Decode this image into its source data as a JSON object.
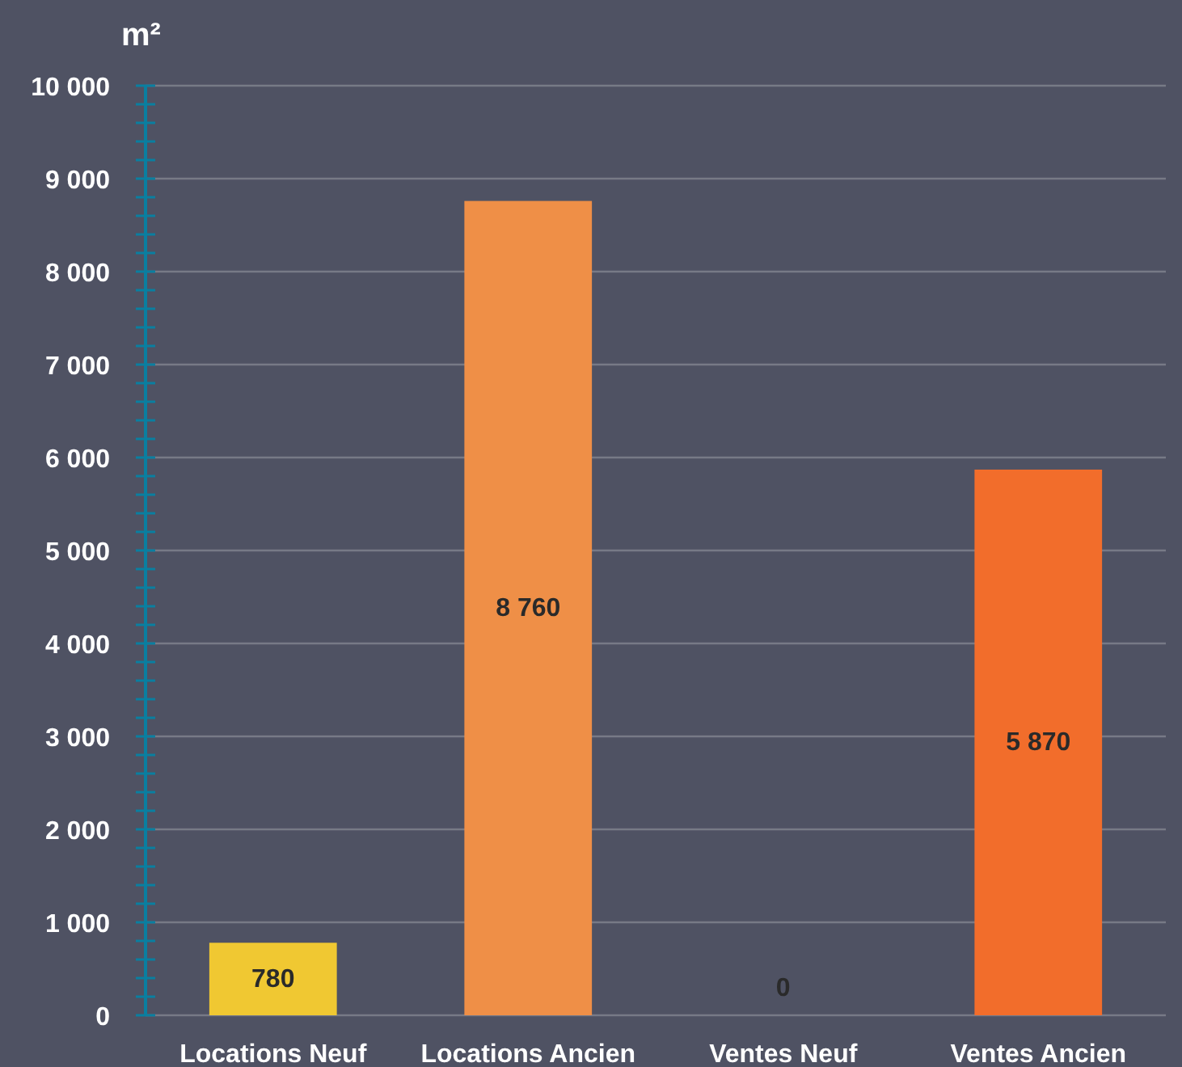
{
  "chart_data": {
    "type": "bar",
    "ylabel": "m²",
    "categories": [
      "Locations Neuf",
      "Locations Ancien",
      "Ventes Neuf",
      "Ventes Ancien"
    ],
    "values": [
      780,
      8760,
      0,
      5870
    ],
    "colors": [
      "#f0c832",
      "#ef8f47",
      "#f27530",
      "#f26d2b"
    ],
    "value_labels": [
      "780",
      "8 760",
      "0",
      "5 870"
    ],
    "ylim": [
      0,
      10000
    ],
    "yticks": [
      {
        "value": 0,
        "label": "0"
      },
      {
        "value": 200,
        "label": null
      },
      {
        "value": 400,
        "label": null
      },
      {
        "value": 600,
        "label": null
      },
      {
        "value": 800,
        "label": null
      },
      {
        "value": 1000,
        "label": "1 000"
      },
      {
        "value": 1200,
        "label": null
      },
      {
        "value": 1400,
        "label": null
      },
      {
        "value": 1600,
        "label": null
      },
      {
        "value": 1800,
        "label": null
      },
      {
        "value": 2000,
        "label": "2 000"
      },
      {
        "value": 2200,
        "label": null
      },
      {
        "value": 2400,
        "label": null
      },
      {
        "value": 2600,
        "label": null
      },
      {
        "value": 2800,
        "label": null
      },
      {
        "value": 3000,
        "label": "3 000"
      },
      {
        "value": 3200,
        "label": null
      },
      {
        "value": 3400,
        "label": null
      },
      {
        "value": 3600,
        "label": null
      },
      {
        "value": 3800,
        "label": null
      },
      {
        "value": 4000,
        "label": "4 000"
      },
      {
        "value": 4200,
        "label": null
      },
      {
        "value": 4400,
        "label": null
      },
      {
        "value": 4600,
        "label": null
      },
      {
        "value": 4800,
        "label": null
      },
      {
        "value": 5000,
        "label": "5 000"
      },
      {
        "value": 5200,
        "label": null
      },
      {
        "value": 5400,
        "label": null
      },
      {
        "value": 5600,
        "label": null
      },
      {
        "value": 5800,
        "label": null
      },
      {
        "value": 6000,
        "label": "6 000"
      },
      {
        "value": 6200,
        "label": null
      },
      {
        "value": 6400,
        "label": null
      },
      {
        "value": 6600,
        "label": null
      },
      {
        "value": 6800,
        "label": null
      },
      {
        "value": 7000,
        "label": "7 000"
      },
      {
        "value": 7200,
        "label": null
      },
      {
        "value": 7400,
        "label": null
      },
      {
        "value": 7600,
        "label": null
      },
      {
        "value": 7800,
        "label": null
      },
      {
        "value": 8000,
        "label": "8 000"
      },
      {
        "value": 8200,
        "label": null
      },
      {
        "value": 8400,
        "label": null
      },
      {
        "value": 8600,
        "label": null
      },
      {
        "value": 8800,
        "label": null
      },
      {
        "value": 9000,
        "label": "9 000"
      },
      {
        "value": 9200,
        "label": null
      },
      {
        "value": 9400,
        "label": null
      },
      {
        "value": 9600,
        "label": null
      },
      {
        "value": 9800,
        "label": null
      },
      {
        "value": 10000,
        "label": "10 000"
      }
    ],
    "grid": "y"
  }
}
